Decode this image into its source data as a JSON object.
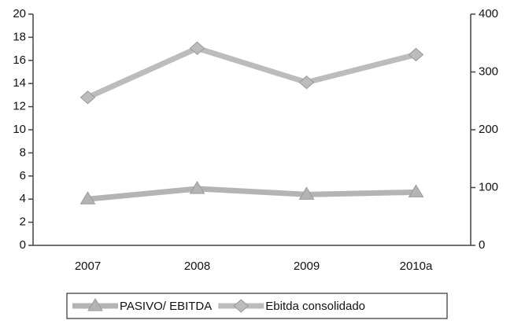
{
  "chart_data": {
    "type": "line",
    "categories": [
      "2007",
      "2008",
      "2009",
      "2010a"
    ],
    "series": [
      {
        "name": "PASIVO/ EBITDA",
        "color": "#b4b4b4",
        "marker": "triangle",
        "values": [
          4.0,
          4.9,
          4.4,
          4.6
        ]
      },
      {
        "name": "Ebitda consolidado",
        "color": "#bcbcbc",
        "marker": "diamond",
        "axis": "y2",
        "values": [
          256,
          341,
          282,
          330
        ]
      }
    ],
    "ylim": [
      0,
      20
    ],
    "yticks": [
      0,
      2,
      4,
      6,
      8,
      10,
      12,
      14,
      16,
      18,
      20
    ],
    "y2lim": [
      0,
      400
    ],
    "y2ticks": [
      0,
      100,
      200,
      300,
      400
    ],
    "legend": "bottom"
  }
}
